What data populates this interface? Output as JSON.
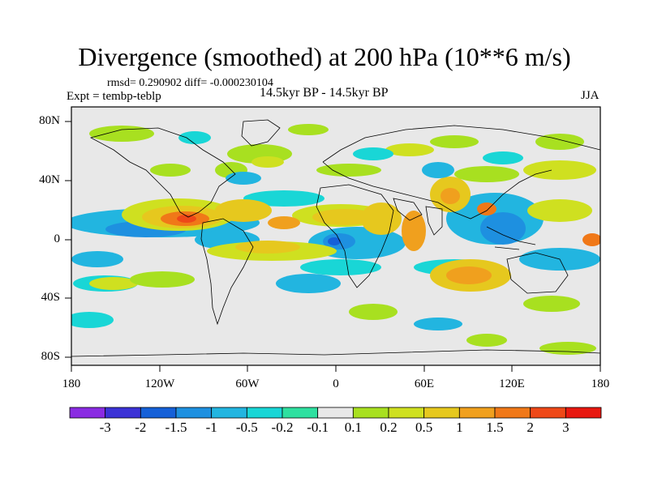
{
  "title": "Divergence (smoothed) at 200 hPa (10**6 m/s)",
  "stats": "rmsd= 0.290902 diff= -0.000230104",
  "experiment": "Expt = tembp-teblp",
  "period": "14.5kyr BP - 14.5kyr BP",
  "season": "JJA",
  "lat_labels": [
    "80N",
    "40N",
    "0",
    "40S",
    "80S"
  ],
  "lon_labels": [
    "180",
    "120W",
    "60W",
    "0",
    "60E",
    "120E",
    "180"
  ],
  "colorbar": {
    "colors": [
      "#8a2be2",
      "#3b32d6",
      "#1560d8",
      "#1e90e0",
      "#22b5e0",
      "#19d6d6",
      "#2ee0a0",
      "#e8e8e8",
      "#a8e020",
      "#cfe020",
      "#e6c81e",
      "#f0a01e",
      "#f07818",
      "#ee4818",
      "#e81810"
    ],
    "labels": [
      "-3",
      "-2",
      "-1.5",
      "-1",
      "-0.5",
      "-0.2",
      "-0.1",
      "0.1",
      "0.2",
      "0.5",
      "1",
      "1.5",
      "2",
      "3"
    ]
  }
}
